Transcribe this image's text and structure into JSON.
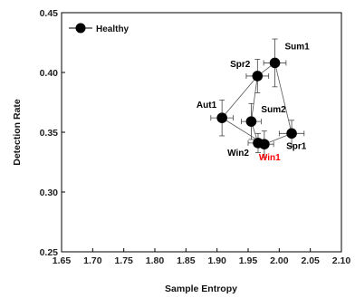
{
  "chart_data": {
    "type": "scatter",
    "xlabel": "Sample Entropy",
    "ylabel": "Detection Rate",
    "xlim": [
      1.65,
      2.1
    ],
    "ylim": [
      0.25,
      0.45
    ],
    "xticks": [
      "1.65",
      "1.70",
      "1.75",
      "1.80",
      "1.85",
      "1.90",
      "1.95",
      "2.00",
      "2.05",
      "2.10"
    ],
    "yticks": [
      "0.25",
      "0.30",
      "0.35",
      "0.40",
      "0.45"
    ],
    "grid": false,
    "legend": {
      "position": "top-left",
      "entries": [
        "Healthy"
      ]
    },
    "series": [
      {
        "name": "Healthy",
        "color": "#000000",
        "points": [
          {
            "label": "Sum1",
            "x": 1.993,
            "y": 0.408,
            "xerr": 0.018,
            "yerr": 0.02,
            "label_color": "#000000"
          },
          {
            "label": "Spr2",
            "x": 1.965,
            "y": 0.397,
            "xerr": 0.018,
            "yerr": 0.014,
            "label_color": "#000000"
          },
          {
            "label": "Aut1",
            "x": 1.908,
            "y": 0.362,
            "xerr": 0.018,
            "yerr": 0.015,
            "label_color": "#000000"
          },
          {
            "label": "Sum2",
            "x": 1.955,
            "y": 0.359,
            "xerr": 0.016,
            "yerr": 0.015,
            "label_color": "#000000"
          },
          {
            "label": "Spr1",
            "x": 2.02,
            "y": 0.349,
            "xerr": 0.02,
            "yerr": 0.011,
            "label_color": "#000000"
          },
          {
            "label": "Win2",
            "x": 1.966,
            "y": 0.341,
            "xerr": 0.016,
            "yerr": 0.008,
            "label_color": "#000000"
          },
          {
            "label": "Win1",
            "x": 1.976,
            "y": 0.34,
            "xerr": 0.015,
            "yerr": 0.011,
            "label_color": "#ff0000"
          }
        ],
        "connections": [
          [
            "Aut1",
            "Spr2"
          ],
          [
            "Spr2",
            "Sum1"
          ],
          [
            "Sum1",
            "Spr1"
          ],
          [
            "Spr1",
            "Win1"
          ],
          [
            "Win1",
            "Aut1"
          ],
          [
            "Spr2",
            "Sum2"
          ],
          [
            "Sum2",
            "Win2"
          ]
        ]
      }
    ]
  }
}
